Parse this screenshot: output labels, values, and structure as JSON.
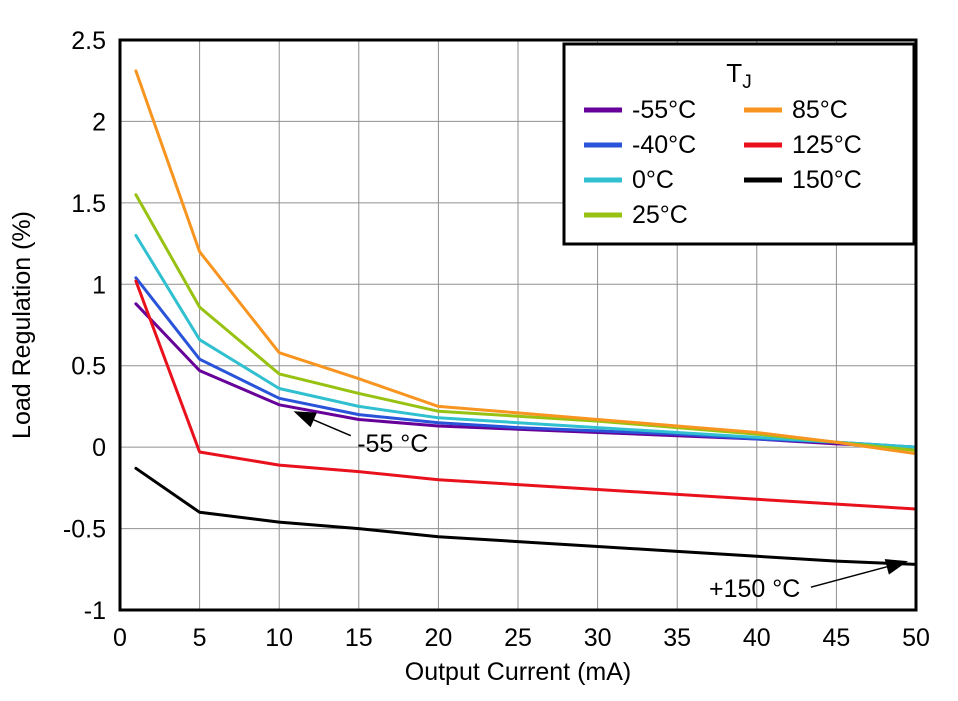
{
  "chart_data": {
    "type": "line",
    "title": "",
    "xlabel": "Output Current (mA)",
    "ylabel": "Load Regulation (%)",
    "xlim": [
      0,
      50
    ],
    "ylim": [
      -1,
      2.5
    ],
    "xticks": [
      0,
      5,
      10,
      15,
      20,
      25,
      30,
      35,
      40,
      45,
      50
    ],
    "xtick_labels": [
      "0",
      "5",
      "10",
      "15",
      "20",
      "25",
      "30",
      "35",
      "40",
      "45",
      "50"
    ],
    "yticks": [
      -1,
      -0.5,
      0,
      0.5,
      1,
      1.5,
      2,
      2.5
    ],
    "ytick_labels": [
      "-1",
      "-0.5",
      "0",
      "0.5",
      "1",
      "1.5",
      "2",
      "2.5"
    ],
    "grid": true,
    "x": [
      1,
      5,
      10,
      15,
      20,
      25,
      30,
      35,
      40,
      45,
      50
    ],
    "series": [
      {
        "name": "-55°C",
        "color": "#660099",
        "values": [
          0.88,
          0.47,
          0.26,
          0.17,
          0.13,
          0.11,
          0.09,
          0.07,
          0.05,
          0.02,
          0.0
        ]
      },
      {
        "name": "-40°C",
        "color": "#2953d8",
        "values": [
          1.04,
          0.54,
          0.3,
          0.2,
          0.15,
          0.12,
          0.1,
          0.08,
          0.05,
          0.03,
          0.0
        ]
      },
      {
        "name": "0°C",
        "color": "#30c0d0",
        "values": [
          1.3,
          0.66,
          0.36,
          0.25,
          0.18,
          0.15,
          0.12,
          0.09,
          0.06,
          0.03,
          0.0
        ]
      },
      {
        "name": "25°C",
        "color": "#97c211",
        "values": [
          1.55,
          0.86,
          0.45,
          0.33,
          0.22,
          0.19,
          0.16,
          0.12,
          0.08,
          0.03,
          -0.02
        ]
      },
      {
        "name": "85°C",
        "color": "#f79520",
        "values": [
          2.31,
          1.2,
          0.58,
          0.42,
          0.25,
          0.21,
          0.17,
          0.13,
          0.09,
          0.03,
          -0.04
        ]
      },
      {
        "name": "125°C",
        "color": "#e8111c",
        "values": [
          1.02,
          -0.03,
          -0.11,
          -0.15,
          -0.2,
          -0.23,
          -0.26,
          -0.29,
          -0.32,
          -0.35,
          -0.38
        ]
      },
      {
        "name": "150°C",
        "color": "#000000",
        "values": [
          -0.13,
          -0.4,
          -0.46,
          -0.5,
          -0.55,
          -0.58,
          -0.61,
          -0.64,
          -0.67,
          -0.7,
          -0.72
        ]
      }
    ],
    "legend": {
      "title_main": "T",
      "title_sub": "J",
      "position": "top-right",
      "columns": [
        [
          0,
          1,
          2,
          3
        ],
        [
          4,
          5,
          6
        ]
      ]
    },
    "annotations": [
      {
        "text": "-55 °C",
        "text_x": 14.9,
        "text_y": -0.03,
        "line_x1": 14.5,
        "line_y1": 0.07,
        "tip_x": 10.9,
        "tip_y": 0.22
      },
      {
        "text": "+150 °C",
        "text_x": 37.0,
        "text_y": -0.92,
        "line_x1": 43.4,
        "line_y1": -0.86,
        "tip_x": 49.5,
        "tip_y": -0.7
      }
    ]
  }
}
